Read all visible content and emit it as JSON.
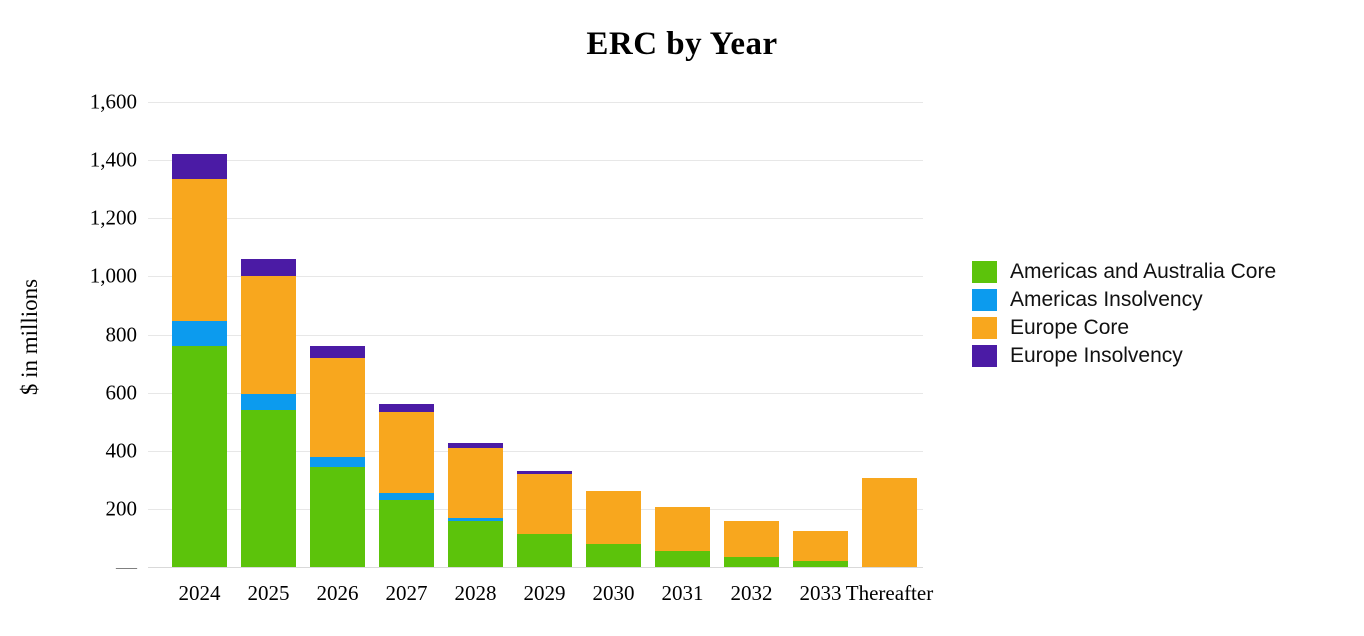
{
  "page": {
    "background": "#ffffff"
  },
  "chart_data": {
    "type": "bar",
    "stacked": true,
    "title": "ERC by Year",
    "ylabel": "$ in millions",
    "xlabel": "",
    "categories": [
      "2024",
      "2025",
      "2026",
      "2027",
      "2028",
      "2029",
      "2030",
      "2031",
      "2032",
      "2033",
      "Thereafter"
    ],
    "series": [
      {
        "name": "Americas and Australia Core",
        "color": "#5CC30B",
        "values": [
          760,
          540,
          345,
          230,
          160,
          115,
          80,
          55,
          35,
          20,
          0
        ]
      },
      {
        "name": "Americas Insolvency",
        "color": "#0C9BEE",
        "values": [
          85,
          55,
          35,
          25,
          10,
          0,
          0,
          0,
          0,
          0,
          0
        ]
      },
      {
        "name": "Europe Core",
        "color": "#F8A71E",
        "values": [
          490,
          405,
          340,
          280,
          240,
          205,
          180,
          150,
          125,
          105,
          305
        ]
      },
      {
        "name": "Europe Insolvency",
        "color": "#4B1BA5",
        "values": [
          85,
          60,
          40,
          25,
          15,
          10,
          0,
          0,
          0,
          0,
          0
        ]
      }
    ],
    "totals": [
      1420,
      1060,
      760,
      560,
      425,
      330,
      260,
      205,
      160,
      125,
      305
    ],
    "ylim": [
      0,
      1600
    ],
    "ytick_interval": 200,
    "ytick_labels": [
      "1,600",
      "1,400",
      "1,200",
      "1,000",
      "800",
      "600",
      "400",
      "200"
    ],
    "zero_tick_label": "—",
    "grid": true,
    "gridline_color": "#E7E7E7",
    "axis_line_color": "#D9D9D9",
    "legend_position": "right"
  }
}
